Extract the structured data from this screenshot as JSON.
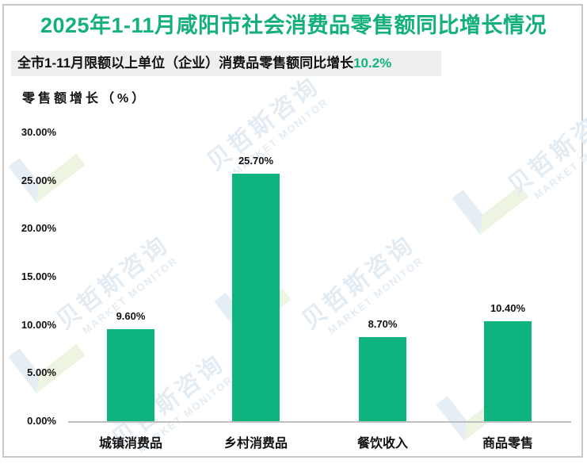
{
  "header": {
    "title": "2025年1-11月咸阳市社会消费品零售额同比增长情况",
    "title_color": "#13b07a",
    "subtitle_text": "全市1-11月限额以上单位（企业）消费品零售额同比增长",
    "subtitle_highlight": "10.2%",
    "subtitle_highlight_color": "#10b37f"
  },
  "watermark": {
    "cn": "贝哲斯咨询",
    "en": "MARKET MONITOR"
  },
  "chart_data": {
    "type": "bar",
    "title": "2025年1-11月咸阳市社会消费品零售额同比增长情况",
    "subtitle": "全市1-11月限额以上单位（企业）消费品零售额同比增长10.2%",
    "xlabel": "",
    "ylabel": "零售额增长（%）",
    "categories": [
      "城镇消费品",
      "乡村消费品",
      "餐饮收入",
      "商品零售"
    ],
    "values": [
      9.6,
      25.7,
      8.7,
      10.4
    ],
    "value_labels": [
      "9.60%",
      "25.70%",
      "8.70%",
      "10.40%"
    ],
    "ylim": [
      0,
      30
    ],
    "yticks": [
      "0.00%",
      "5.00%",
      "10.00%",
      "15.00%",
      "20.00%",
      "25.00%",
      "30.00%"
    ],
    "bar_color": "#0fb37f",
    "grid": false,
    "legend": "none"
  }
}
